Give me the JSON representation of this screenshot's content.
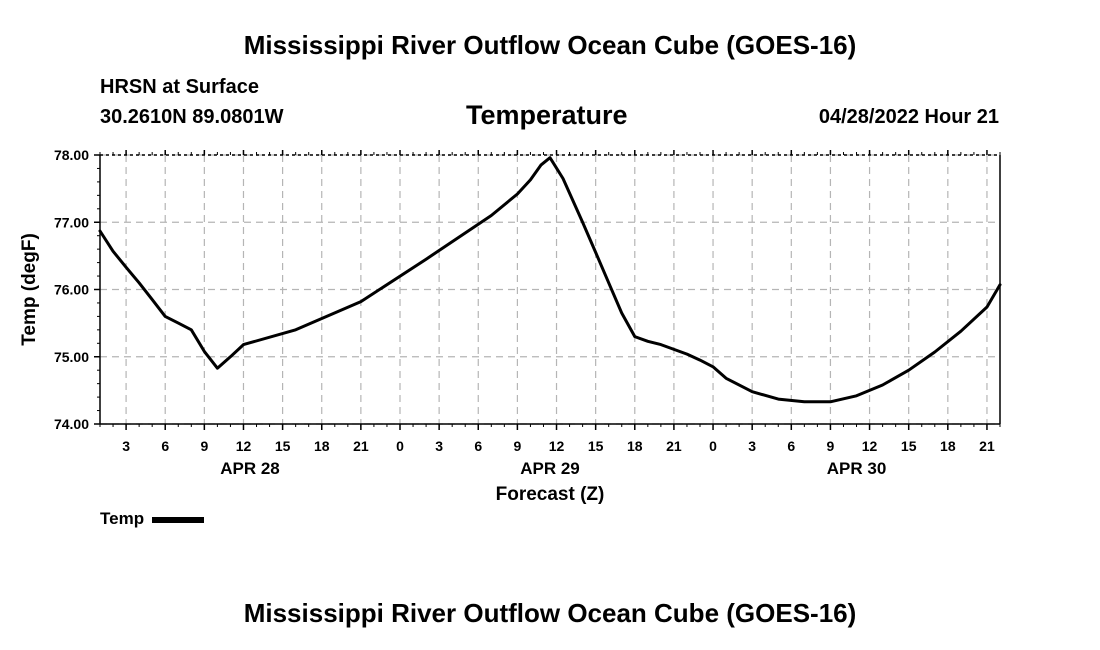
{
  "page": {
    "title": "Mississippi River Outflow Ocean Cube (GOES-16)",
    "footer_title": "Mississippi River Outflow Ocean Cube (GOES-16)",
    "station": "HRSN at Surface",
    "coords": "30.2610N  89.0801W",
    "chart_heading": "Temperature",
    "datetime": "04/28/2022 Hour 21"
  },
  "legend": {
    "label": "Temp",
    "color": "#000000"
  },
  "chart_data": {
    "type": "line",
    "title": "Temperature",
    "xlabel": "Forecast (Z)",
    "ylabel": "Temp (degF)",
    "ylim": [
      74.0,
      78.0
    ],
    "xlim_hours": [
      0,
      69
    ],
    "yticks": [
      "74.00",
      "75.00",
      "76.00",
      "77.00",
      "78.00"
    ],
    "xticks": [
      {
        "h": 2,
        "label": "3"
      },
      {
        "h": 5,
        "label": "6"
      },
      {
        "h": 8,
        "label": "9"
      },
      {
        "h": 11,
        "label": "12"
      },
      {
        "h": 14,
        "label": "15"
      },
      {
        "h": 17,
        "label": "18"
      },
      {
        "h": 20,
        "label": "21"
      },
      {
        "h": 23,
        "label": "0"
      },
      {
        "h": 26,
        "label": "3"
      },
      {
        "h": 29,
        "label": "6"
      },
      {
        "h": 32,
        "label": "9"
      },
      {
        "h": 35,
        "label": "12"
      },
      {
        "h": 38,
        "label": "15"
      },
      {
        "h": 41,
        "label": "18"
      },
      {
        "h": 44,
        "label": "21"
      },
      {
        "h": 47,
        "label": "0"
      },
      {
        "h": 50,
        "label": "3"
      },
      {
        "h": 53,
        "label": "6"
      },
      {
        "h": 56,
        "label": "9"
      },
      {
        "h": 59,
        "label": "12"
      },
      {
        "h": 62,
        "label": "15"
      },
      {
        "h": 65,
        "label": "18"
      },
      {
        "h": 68,
        "label": "21"
      }
    ],
    "day_labels": [
      {
        "h": 11.5,
        "label": "APR 28"
      },
      {
        "h": 34.5,
        "label": "APR 29"
      },
      {
        "h": 58,
        "label": "APR 30"
      }
    ],
    "grid": true,
    "series": [
      {
        "name": "Temp",
        "x": [
          0,
          1,
          2,
          3,
          4,
          5,
          6,
          7,
          8,
          9,
          10,
          11,
          15,
          20,
          25,
          30,
          32,
          33,
          33.8,
          34.5,
          35.5,
          37,
          38,
          39,
          40,
          41,
          42,
          43,
          45,
          46,
          47,
          48,
          50,
          52,
          54,
          56,
          58,
          60,
          62,
          64,
          66,
          68,
          69
        ],
        "y": [
          76.87,
          76.57,
          76.33,
          76.1,
          75.85,
          75.6,
          75.5,
          75.4,
          75.08,
          74.83,
          75.0,
          75.18,
          75.4,
          75.82,
          76.45,
          77.1,
          77.42,
          77.63,
          77.85,
          77.96,
          77.65,
          77.0,
          76.55,
          76.1,
          75.65,
          75.3,
          75.23,
          75.18,
          75.04,
          74.95,
          74.85,
          74.68,
          74.48,
          74.37,
          74.33,
          74.33,
          74.42,
          74.58,
          74.8,
          75.07,
          75.38,
          75.74,
          76.07
        ]
      }
    ]
  }
}
